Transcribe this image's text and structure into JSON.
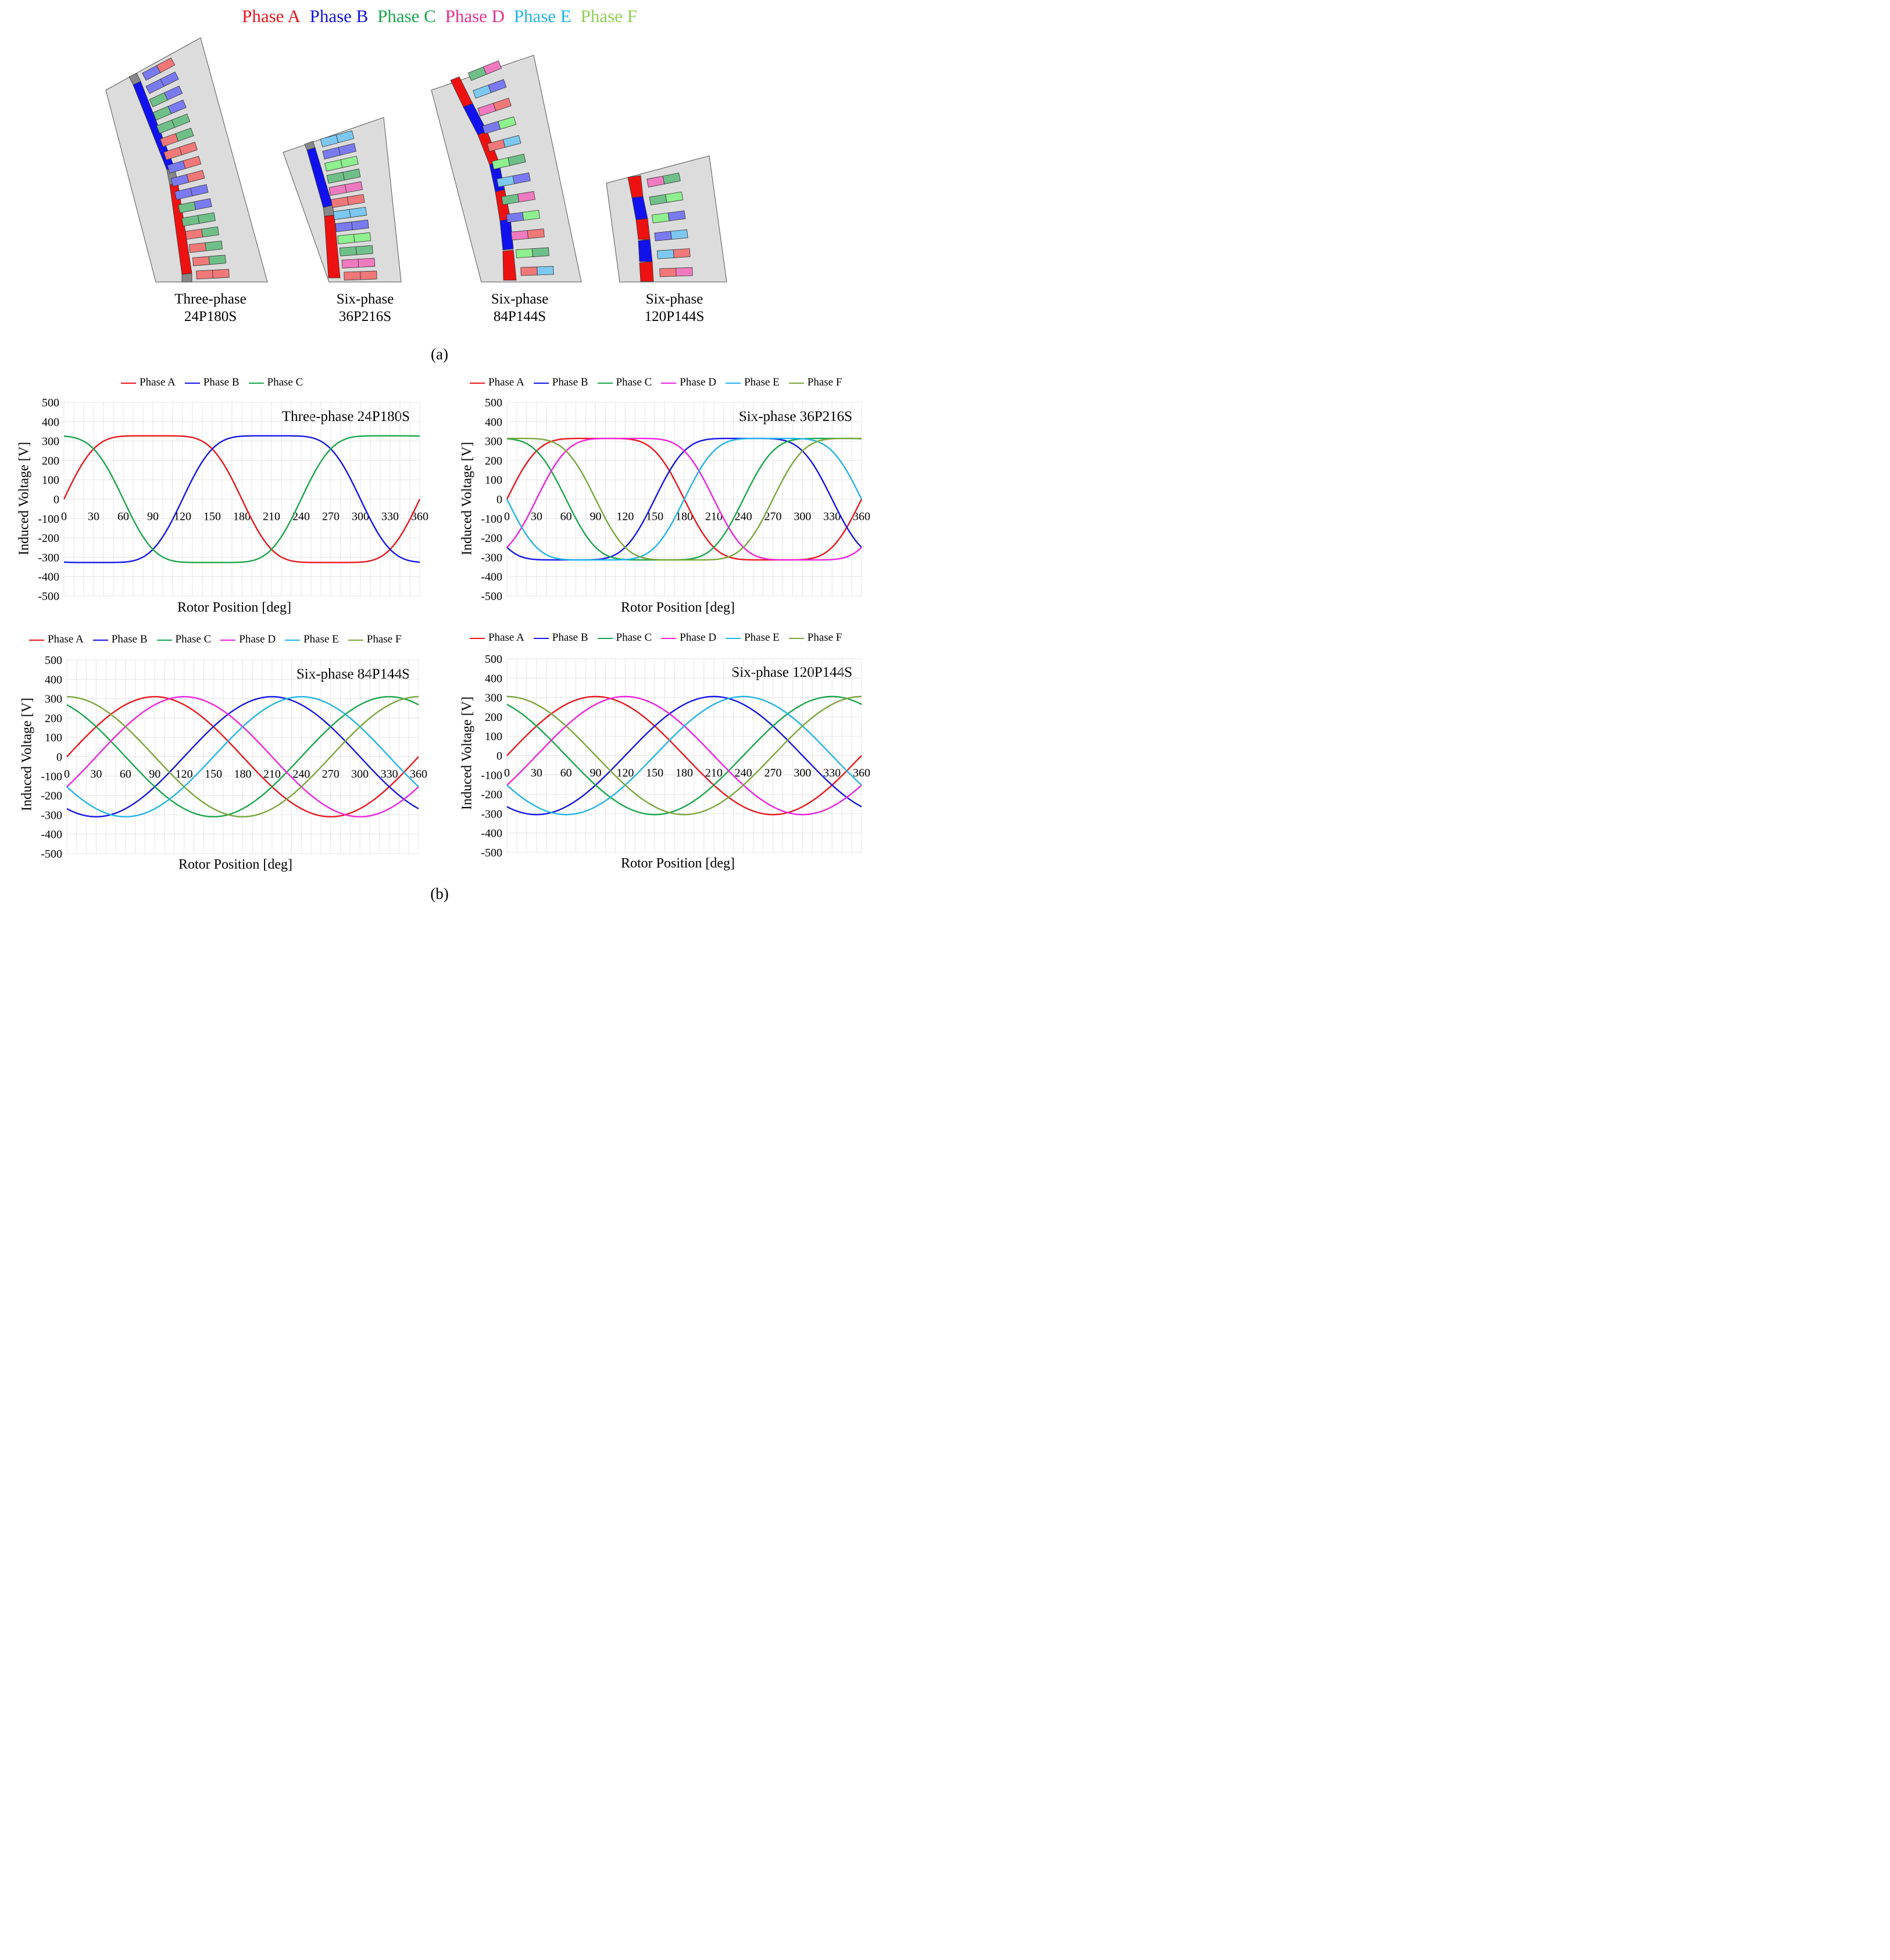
{
  "top_legend": [
    {
      "label": "Phase A",
      "color": "#e8161b"
    },
    {
      "label": "Phase B",
      "color": "#1414e6"
    },
    {
      "label": "Phase C",
      "color": "#19a64b"
    },
    {
      "label": "Phase D",
      "color": "#e8308c"
    },
    {
      "label": "Phase E",
      "color": "#22b4e6"
    },
    {
      "label": "Phase F",
      "color": "#8fcf55"
    }
  ],
  "machines": [
    {
      "line1": "Three-phase",
      "line2": "24P180S"
    },
    {
      "line1": "Six-phase",
      "line2": "36P216S"
    },
    {
      "line1": "Six-phase",
      "line2": "84P144S"
    },
    {
      "line1": "Six-phase",
      "line2": "120P144S"
    }
  ],
  "caption_a": "(a)",
  "caption_b": "(b)",
  "chart_data": [
    {
      "type": "line",
      "title": "Three-phase 24P180S",
      "xlabel": "Rotor Position [deg]",
      "ylabel": "Induced Voltage [V]",
      "xlim": [
        0,
        360
      ],
      "ylim": [
        -500,
        500
      ],
      "xticks": [
        0,
        30,
        60,
        90,
        120,
        150,
        180,
        210,
        240,
        270,
        300,
        330,
        360
      ],
      "yticks": [
        500,
        400,
        300,
        200,
        100,
        0,
        -100,
        -200,
        -300,
        -400,
        -500
      ],
      "grid": true,
      "legend": "top",
      "amplitude": 365,
      "shape": "trapezoid",
      "series": [
        {
          "name": "Phase A",
          "color": "#e8161b",
          "phase_deg": 0
        },
        {
          "name": "Phase B",
          "color": "#1414e6",
          "phase_deg": 120
        },
        {
          "name": "Phase C",
          "color": "#19a64b",
          "phase_deg": 240
        }
      ]
    },
    {
      "type": "line",
      "title": "Six-phase 36P216S",
      "xlabel": "Rotor Position [deg]",
      "ylabel": "Induced Voltage [V]",
      "xlim": [
        0,
        360
      ],
      "ylim": [
        -500,
        500
      ],
      "xticks": [
        0,
        30,
        60,
        90,
        120,
        150,
        180,
        210,
        240,
        270,
        300,
        330,
        360
      ],
      "yticks": [
        500,
        400,
        300,
        200,
        100,
        0,
        -100,
        -200,
        -300,
        -400,
        -500
      ],
      "grid": true,
      "legend": "top",
      "amplitude": 350,
      "shape": "trapezoid",
      "series": [
        {
          "name": "Phase A",
          "color": "#e8161b",
          "phase_deg": 0
        },
        {
          "name": "Phase B",
          "color": "#1414e6",
          "phase_deg": 150
        },
        {
          "name": "Phase C",
          "color": "#19a64b",
          "phase_deg": 240
        },
        {
          "name": "Phase D",
          "color": "#ee22dd",
          "phase_deg": 30
        },
        {
          "name": "Phase E",
          "color": "#22b4e6",
          "phase_deg": 180
        },
        {
          "name": "Phase F",
          "color": "#7aa63c",
          "phase_deg": 270
        }
      ]
    },
    {
      "type": "line",
      "title": "Six-phase 84P144S",
      "xlabel": "Rotor Position [deg]",
      "ylabel": "Induced Voltage [V]",
      "xlim": [
        0,
        360
      ],
      "ylim": [
        -500,
        500
      ],
      "xticks": [
        0,
        30,
        60,
        90,
        120,
        150,
        180,
        210,
        240,
        270,
        300,
        330,
        360
      ],
      "yticks": [
        500,
        400,
        300,
        200,
        100,
        0,
        -100,
        -200,
        -300,
        -400,
        -500
      ],
      "grid": true,
      "legend": "top",
      "amplitude": 310,
      "shape": "sine",
      "series": [
        {
          "name": "Phase A",
          "color": "#e8161b",
          "phase_deg": 0
        },
        {
          "name": "Phase B",
          "color": "#1414e6",
          "phase_deg": 120
        },
        {
          "name": "Phase C",
          "color": "#19a64b",
          "phase_deg": 240
        },
        {
          "name": "Phase D",
          "color": "#ee22dd",
          "phase_deg": 30
        },
        {
          "name": "Phase E",
          "color": "#22b4e6",
          "phase_deg": 150
        },
        {
          "name": "Phase F",
          "color": "#7aa63c",
          "phase_deg": 270
        }
      ]
    },
    {
      "type": "line",
      "title": "Six-phase 120P144S",
      "xlabel": "Rotor Position [deg]",
      "ylabel": "Induced Voltage [V]",
      "xlim": [
        0,
        360
      ],
      "ylim": [
        -500,
        500
      ],
      "xticks": [
        0,
        30,
        60,
        90,
        120,
        150,
        180,
        210,
        240,
        270,
        300,
        330,
        360
      ],
      "yticks": [
        500,
        400,
        300,
        200,
        100,
        0,
        -100,
        -200,
        -300,
        -400,
        -500
      ],
      "grid": true,
      "legend": "top",
      "amplitude": 305,
      "shape": "sine",
      "series": [
        {
          "name": "Phase A",
          "color": "#e8161b",
          "phase_deg": 0
        },
        {
          "name": "Phase B",
          "color": "#1414e6",
          "phase_deg": 120
        },
        {
          "name": "Phase C",
          "color": "#19a64b",
          "phase_deg": 240
        },
        {
          "name": "Phase D",
          "color": "#ee22dd",
          "phase_deg": 30
        },
        {
          "name": "Phase E",
          "color": "#22b4e6",
          "phase_deg": 150
        },
        {
          "name": "Phase F",
          "color": "#7aa63c",
          "phase_deg": 270
        }
      ]
    }
  ]
}
